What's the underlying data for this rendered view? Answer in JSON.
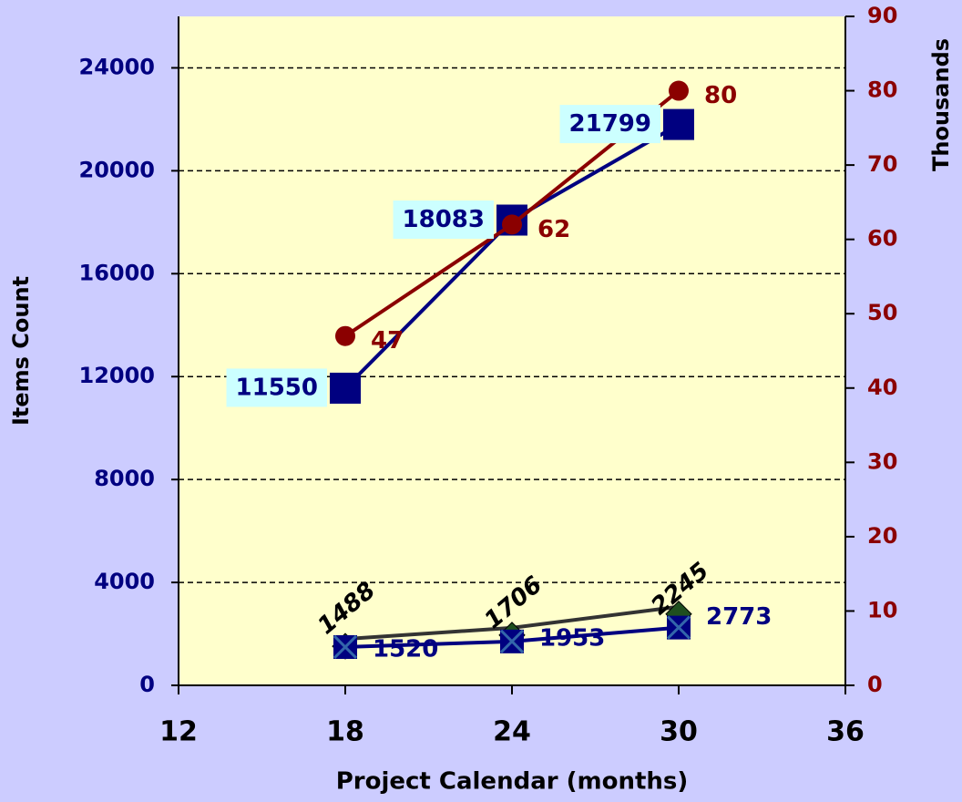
{
  "chart_data": {
    "type": "line",
    "x_label": "Project Calendar (months)",
    "y_label": "Items Count",
    "y2_label": "Thousands",
    "xlim": [
      12,
      36
    ],
    "xticks": [
      12,
      18,
      24,
      30,
      36
    ],
    "ylim": [
      0,
      26000
    ],
    "yticks": [
      0,
      4000,
      8000,
      12000,
      16000,
      20000,
      24000
    ],
    "y2lim": [
      0,
      90
    ],
    "y2ticks": [
      0,
      10,
      20,
      30,
      40,
      50,
      60,
      70,
      80,
      90
    ],
    "grid": true,
    "background": "#ccccff",
    "plot_background": "#ffffcc",
    "series": [
      {
        "marker": "diamond",
        "color": "#1f4f1f",
        "line_color": "#333333",
        "label_color": "#000080",
        "x": [
          18,
          24,
          30
        ],
        "values": [
          1520,
          1953,
          2773
        ]
      },
      {
        "marker": "x-square",
        "color": "#000080",
        "line_color": "#000080",
        "label_color": "#000000",
        "x": [
          18,
          24,
          30
        ],
        "values": [
          1488,
          1706,
          2245
        ]
      },
      {
        "marker": "square",
        "color": "#000080",
        "line_color": "#000080",
        "label_color": "#000080",
        "label_background": "#ccffff",
        "x": [
          18,
          24,
          30
        ],
        "values": [
          11550,
          18083,
          21799
        ]
      },
      {
        "marker": "circle",
        "axis": "y2",
        "color": "#8b0000",
        "line_color": "#8b0000",
        "label_color": "#8b0000",
        "x": [
          18,
          24,
          30
        ],
        "values": [
          47,
          62,
          80
        ]
      }
    ]
  }
}
